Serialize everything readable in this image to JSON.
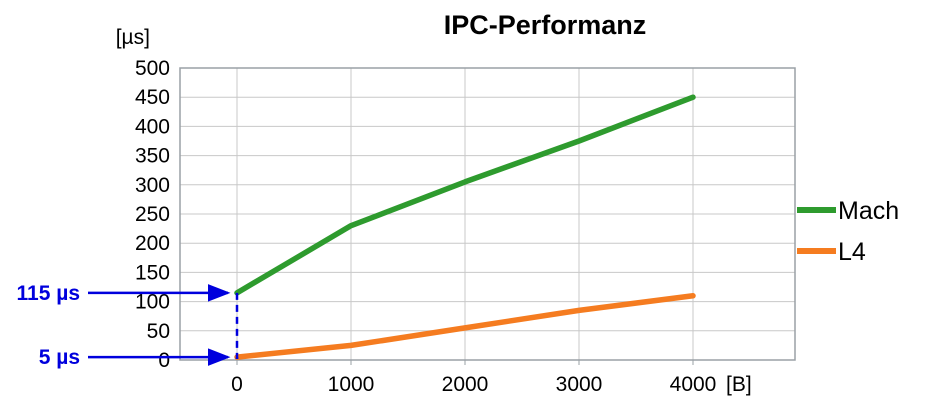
{
  "chart_data": {
    "type": "line",
    "title": "IPC-Performanz",
    "y_unit_label": "[µs]",
    "x_unit_label": "[B]",
    "x": [
      0,
      1000,
      2000,
      3000,
      4000
    ],
    "x_tick_labels": [
      "0",
      "1000",
      "2000",
      "3000",
      "4000"
    ],
    "ylim": [
      0,
      500
    ],
    "ytick_step": 50,
    "grid": true,
    "legend_position": "right",
    "series": [
      {
        "name": "Mach",
        "color": "#2e9b2e",
        "values": [
          115,
          230,
          305,
          375,
          450
        ]
      },
      {
        "name": "L4",
        "color": "#f57c20",
        "values": [
          5,
          25,
          55,
          85,
          110
        ]
      }
    ],
    "annotations": [
      {
        "label": "115 µs",
        "x": 0,
        "y": 115,
        "color": "#0000dd"
      },
      {
        "label": "5 µs",
        "x": 0,
        "y": 5,
        "color": "#0000dd"
      }
    ],
    "colors": {
      "grid": "#c8c8c8",
      "border": "#9aa0a6",
      "text": "#000000"
    }
  }
}
